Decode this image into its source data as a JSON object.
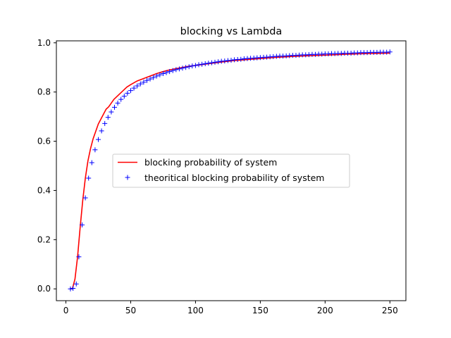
{
  "chart_data": {
    "type": "line",
    "title": "blocking vs Lambda",
    "xlabel": "",
    "ylabel": "",
    "xlim": [
      -7.35,
      262.35
    ],
    "ylim": [
      -0.048,
      1.008
    ],
    "xticks": [
      0,
      50,
      100,
      150,
      200,
      250
    ],
    "yticks": [
      0.0,
      0.2,
      0.4,
      0.6,
      0.8,
      1.0
    ],
    "xtick_labels": [
      "0",
      "50",
      "100",
      "150",
      "200",
      "250"
    ],
    "ytick_labels": [
      "0.0",
      "0.2",
      "0.4",
      "0.6",
      "0.8",
      "1.0"
    ],
    "grid": false,
    "legend_position": "center-right",
    "series": [
      {
        "name": "blocking probability of system",
        "style": "line",
        "color": "#ff0000",
        "x": [
          3,
          5,
          7,
          9,
          11,
          13,
          15,
          17,
          19,
          21,
          23,
          25,
          27,
          29,
          31,
          33,
          35,
          37,
          39,
          41,
          43,
          45,
          47,
          50,
          55,
          60,
          65,
          70,
          75,
          80,
          85,
          90,
          95,
          100,
          110,
          120,
          130,
          140,
          150,
          160,
          170,
          180,
          190,
          200,
          210,
          220,
          230,
          240,
          250
        ],
        "y": [
          0.0,
          0.0,
          0.04,
          0.13,
          0.25,
          0.36,
          0.45,
          0.52,
          0.57,
          0.61,
          0.64,
          0.67,
          0.69,
          0.71,
          0.73,
          0.74,
          0.755,
          0.77,
          0.78,
          0.79,
          0.8,
          0.81,
          0.82,
          0.83,
          0.845,
          0.855,
          0.865,
          0.875,
          0.883,
          0.89,
          0.895,
          0.9,
          0.905,
          0.908,
          0.915,
          0.922,
          0.928,
          0.932,
          0.936,
          0.94,
          0.943,
          0.946,
          0.948,
          0.95,
          0.952,
          0.954,
          0.956,
          0.957,
          0.958
        ]
      },
      {
        "name": "theoritical blocking probability of system",
        "style": "plus",
        "color": "#0000ff",
        "x": [
          3.5,
          5.5,
          8,
          10,
          12.5,
          15,
          17.5,
          20,
          22.5,
          25,
          27.5,
          30,
          32.5,
          35,
          37.5,
          40,
          42.5,
          45,
          47.5,
          50,
          52.5,
          55,
          57.5,
          60,
          62.5,
          65,
          67.5,
          70,
          72.5,
          75,
          77.5,
          80,
          82.5,
          85,
          87.5,
          90,
          92.5,
          95,
          97.5,
          100,
          102.5,
          105,
          107.5,
          110,
          112.5,
          115,
          117.5,
          120,
          122.5,
          125,
          127.5,
          130,
          132.5,
          135,
          137.5,
          140,
          142.5,
          145,
          147.5,
          150,
          152.5,
          155,
          157.5,
          160,
          162.5,
          165,
          167.5,
          170,
          172.5,
          175,
          177.5,
          180,
          182.5,
          185,
          187.5,
          190,
          192.5,
          195,
          197.5,
          200,
          202.5,
          205,
          207.5,
          210,
          212.5,
          215,
          217.5,
          220,
          222.5,
          225,
          227.5,
          230,
          232.5,
          235,
          237.5,
          240,
          242.5,
          245,
          247.5,
          250
        ],
        "y": [
          0.0,
          0.002,
          0.02,
          0.13,
          0.26,
          0.37,
          0.45,
          0.513,
          0.565,
          0.607,
          0.642,
          0.672,
          0.697,
          0.719,
          0.738,
          0.755,
          0.77,
          0.783,
          0.795,
          0.806,
          0.816,
          0.825,
          0.833,
          0.84,
          0.847,
          0.853,
          0.859,
          0.865,
          0.87,
          0.875,
          0.879,
          0.883,
          0.887,
          0.891,
          0.894,
          0.897,
          0.9,
          0.903,
          0.906,
          0.908,
          0.911,
          0.913,
          0.915,
          0.917,
          0.919,
          0.921,
          0.923,
          0.925,
          0.926,
          0.928,
          0.929,
          0.931,
          0.932,
          0.933,
          0.935,
          0.936,
          0.937,
          0.938,
          0.939,
          0.94,
          0.941,
          0.942,
          0.943,
          0.944,
          0.945,
          0.946,
          0.946,
          0.947,
          0.948,
          0.949,
          0.949,
          0.95,
          0.951,
          0.951,
          0.952,
          0.953,
          0.953,
          0.954,
          0.954,
          0.955,
          0.955,
          0.956,
          0.956,
          0.957,
          0.957,
          0.958,
          0.958,
          0.958,
          0.959,
          0.959,
          0.96,
          0.96,
          0.96,
          0.961,
          0.961,
          0.961,
          0.962,
          0.962,
          0.962,
          0.963
        ]
      }
    ]
  }
}
